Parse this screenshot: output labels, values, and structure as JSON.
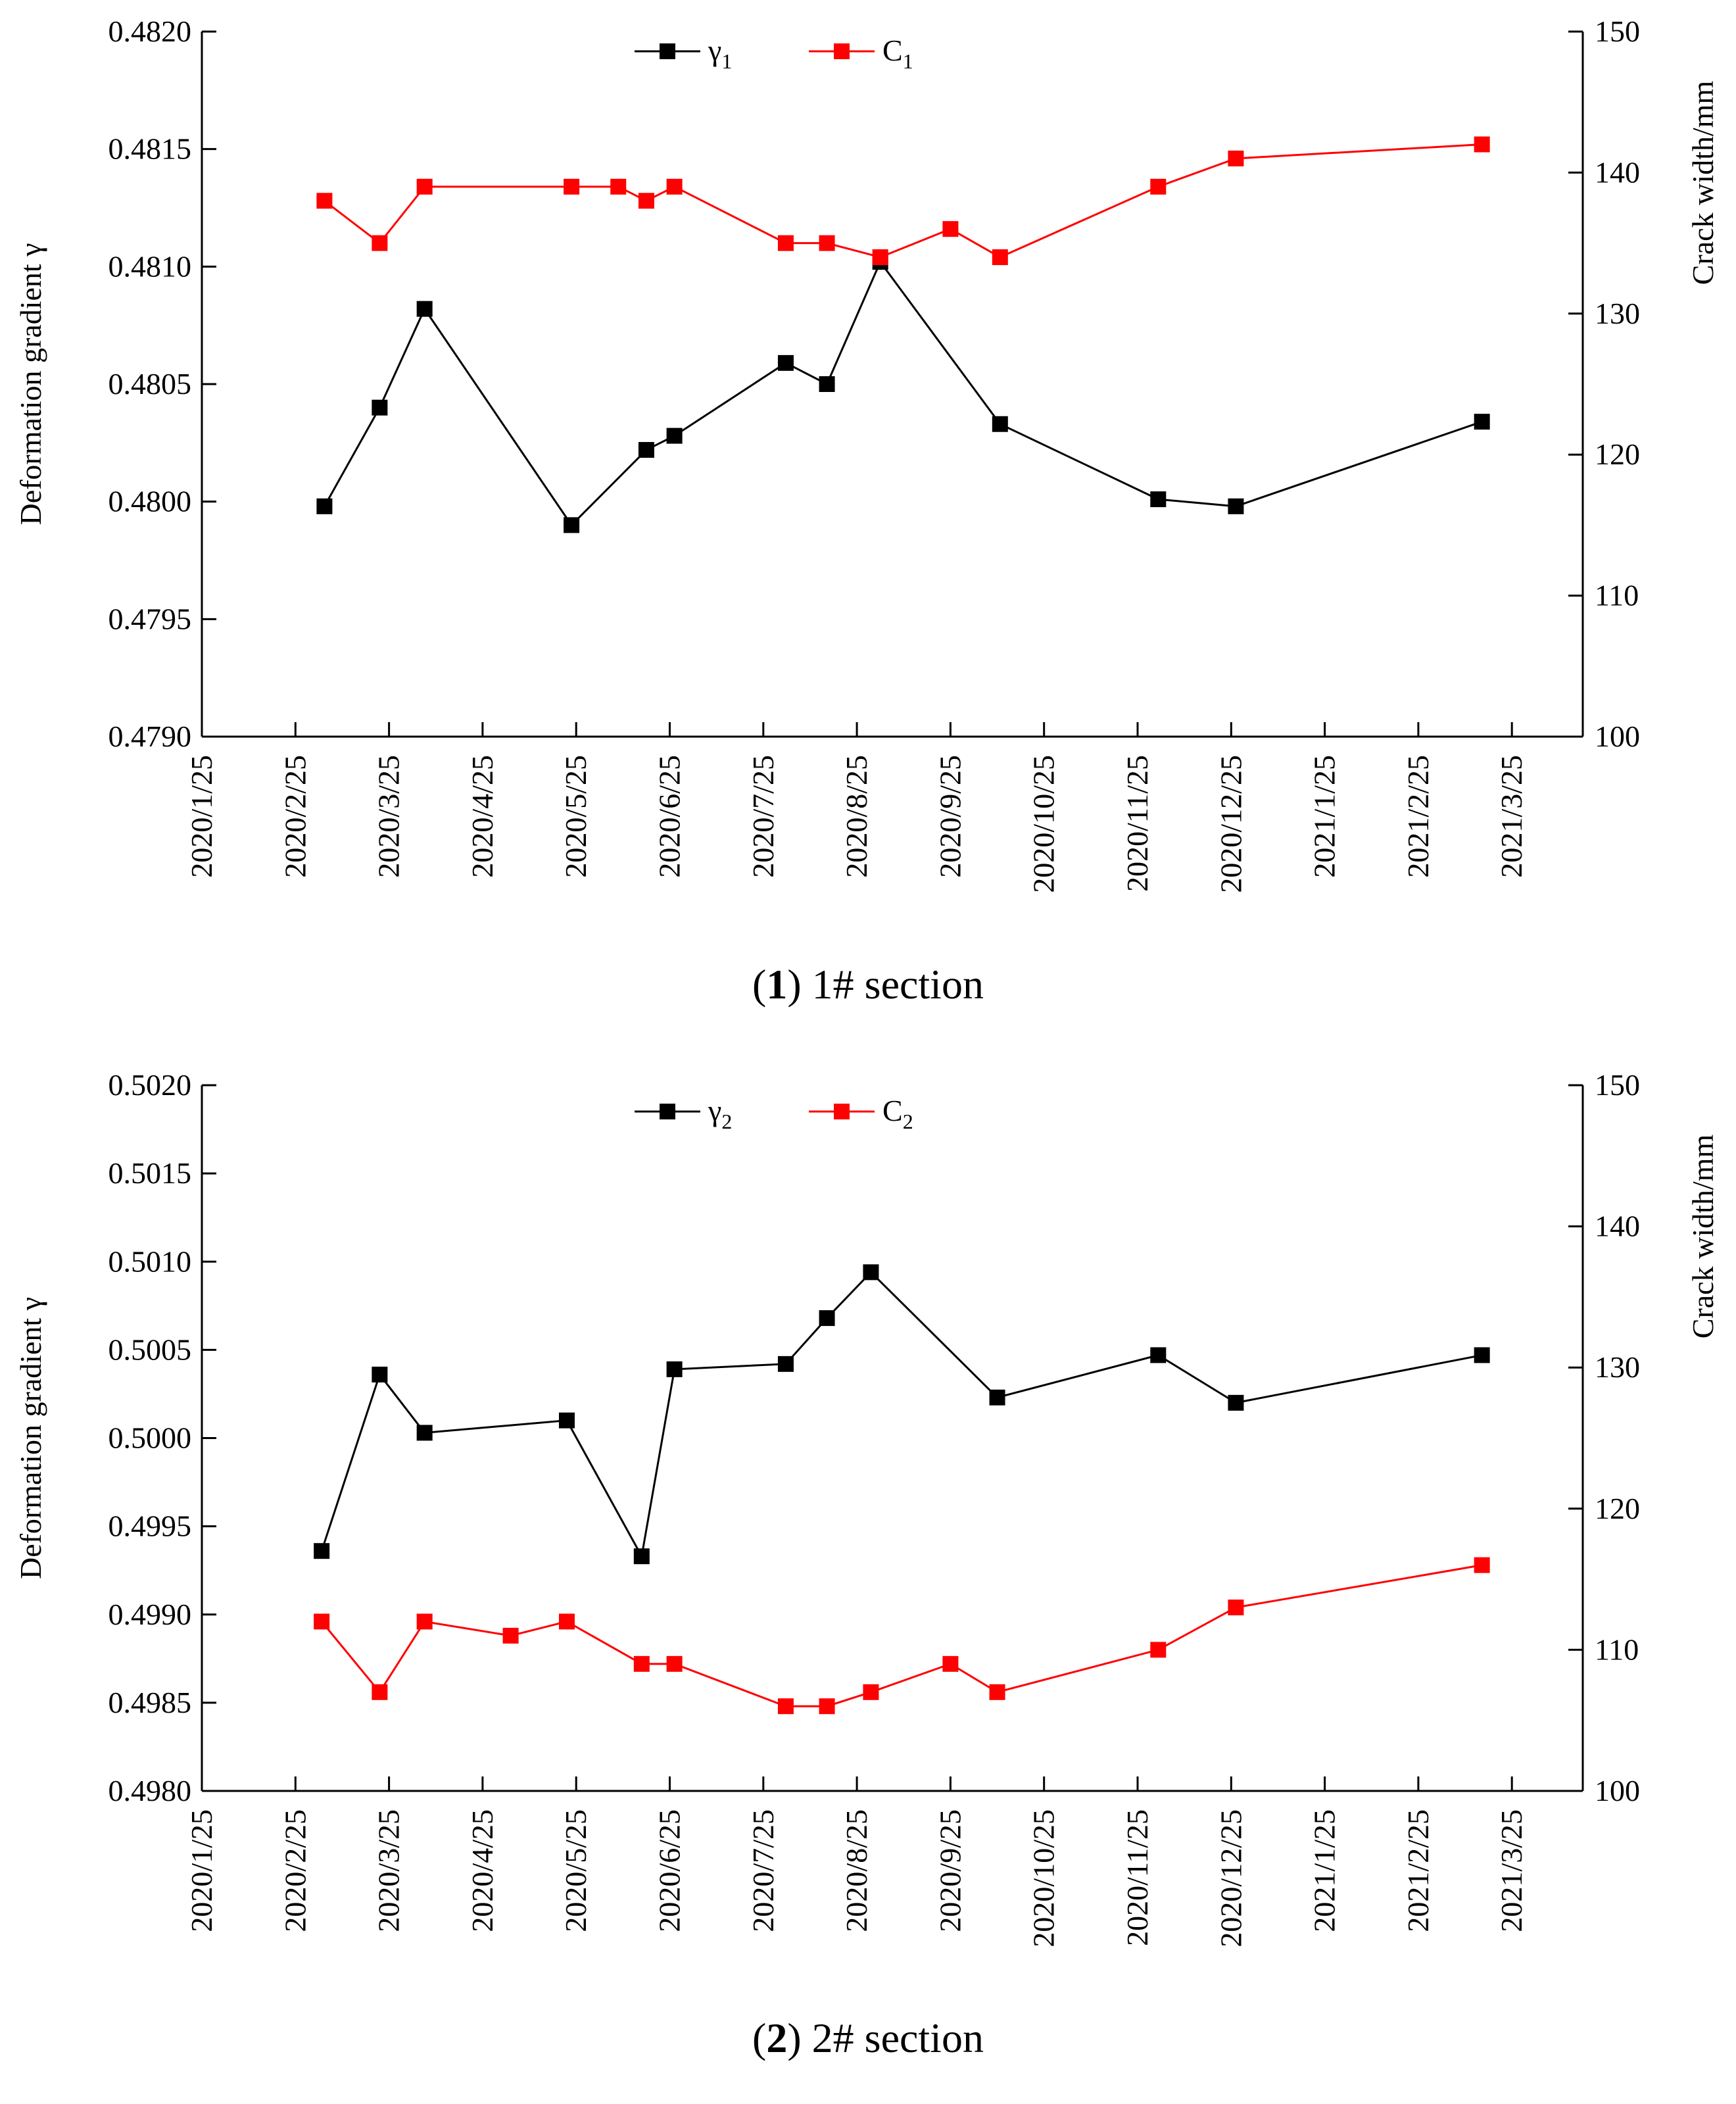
{
  "chart_data": [
    {
      "type": "line",
      "caption": {
        "number": "1",
        "text": "1# section"
      },
      "ylabel_left": "Deformation gradient γ",
      "ylabel_right": "Crack width/mm",
      "ylim_left": [
        0.479,
        0.482
      ],
      "yticks_left": [
        "0.4790",
        "0.4795",
        "0.4800",
        "0.4805",
        "0.4810",
        "0.4815",
        "0.4820"
      ],
      "ylim_right": [
        100,
        150
      ],
      "yticks_right": [
        "100",
        "110",
        "120",
        "130",
        "140",
        "150"
      ],
      "x_tick_labels": [
        "2020/1/25",
        "2020/2/25",
        "2020/3/25",
        "2020/4/25",
        "2020/5/25",
        "2020/6/25",
        "2020/7/25",
        "2020/8/25",
        "2020/9/25",
        "2020/10/25",
        "2020/11/25",
        "2020/12/25",
        "2021/1/25",
        "2021/2/25",
        "2021/3/25"
      ],
      "series": [
        {
          "name": "γ",
          "sub": "1",
          "axis": "left",
          "color": "#000000",
          "x": [
            1.31,
            1.9,
            2.38,
            3.95,
            4.75,
            5.05,
            6.24,
            6.68,
            7.25,
            8.53,
            10.22,
            11.05,
            13.68
          ],
          "values": [
            0.47998,
            0.4804,
            0.48082,
            0.4799,
            0.48022,
            0.48028,
            0.48059,
            0.4805,
            0.48102,
            0.48033,
            0.48001,
            0.47998,
            0.48034
          ]
        },
        {
          "name": "C",
          "sub": "1",
          "axis": "right",
          "color": "#ff0000",
          "x": [
            1.31,
            1.9,
            2.38,
            3.95,
            4.45,
            4.75,
            5.05,
            6.24,
            6.68,
            7.25,
            8.0,
            8.53,
            10.22,
            11.05,
            13.68
          ],
          "values": [
            138,
            135,
            139,
            139,
            139,
            138,
            139,
            135,
            135,
            134,
            136,
            134,
            139,
            141,
            142
          ]
        }
      ]
    },
    {
      "type": "line",
      "caption": {
        "number": "2",
        "text": "2# section"
      },
      "ylabel_left": "Deformation gradient γ",
      "ylabel_right": "Crack width/mm",
      "ylim_left": [
        0.498,
        0.502
      ],
      "yticks_left": [
        "0.4980",
        "0.4985",
        "0.4990",
        "0.4995",
        "0.5000",
        "0.5005",
        "0.5010",
        "0.5015",
        "0.5020"
      ],
      "ylim_right": [
        100,
        150
      ],
      "yticks_right": [
        "100",
        "110",
        "120",
        "130",
        "140",
        "150"
      ],
      "x_tick_labels": [
        "2020/1/25",
        "2020/2/25",
        "2020/3/25",
        "2020/4/25",
        "2020/5/25",
        "2020/6/25",
        "2020/7/25",
        "2020/8/25",
        "2020/9/25",
        "2020/10/25",
        "2020/11/25",
        "2020/12/25",
        "2021/1/25",
        "2021/2/25",
        "2021/3/25"
      ],
      "series": [
        {
          "name": "γ",
          "sub": "2",
          "axis": "left",
          "color": "#000000",
          "x": [
            1.28,
            1.9,
            2.38,
            3.9,
            4.7,
            5.05,
            6.24,
            6.68,
            7.15,
            8.5,
            10.22,
            11.05,
            13.68
          ],
          "values": [
            0.49936,
            0.50036,
            0.50003,
            0.5001,
            0.49933,
            0.50039,
            0.50042,
            0.50068,
            0.50094,
            0.50023,
            0.50047,
            0.5002,
            0.50047
          ]
        },
        {
          "name": "C",
          "sub": "2",
          "axis": "right",
          "color": "#ff0000",
          "x": [
            1.28,
            1.9,
            2.38,
            3.3,
            3.9,
            4.7,
            5.05,
            6.24,
            6.68,
            7.15,
            8.0,
            8.5,
            10.22,
            11.05,
            13.68
          ],
          "values": [
            112,
            107,
            112,
            111,
            112,
            109,
            109,
            106,
            106,
            107,
            109,
            107,
            110,
            113,
            116
          ]
        }
      ]
    }
  ]
}
